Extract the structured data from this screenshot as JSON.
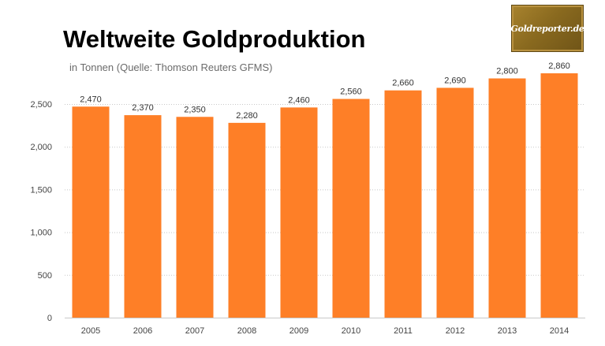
{
  "title": "Weltweite Goldproduktion",
  "subtitle": "in Tonnen (Quelle: Thomson Reuters GFMS)",
  "logo": {
    "text": "Goldreporter.de"
  },
  "colors": {
    "bar": "#FE7F27",
    "grid": "#c8c8c8",
    "axis_text": "#444444",
    "label_text": "#333333"
  },
  "chart_data": {
    "type": "bar",
    "categories": [
      "2005",
      "2006",
      "2007",
      "2008",
      "2009",
      "2010",
      "2011",
      "2012",
      "2013",
      "2014"
    ],
    "values": [
      2470,
      2370,
      2350,
      2280,
      2460,
      2560,
      2660,
      2690,
      2800,
      2860
    ],
    "value_labels": [
      "2,470",
      "2,370",
      "2,350",
      "2,280",
      "2,460",
      "2,560",
      "2,660",
      "2,690",
      "2,800",
      "2,860"
    ],
    "yticks": [
      0,
      500,
      1000,
      1500,
      2000,
      2500
    ],
    "ytick_labels": [
      "0",
      "500",
      "1,000",
      "1,500",
      "2,000",
      "2,500"
    ],
    "ylim": [
      0,
      2860
    ],
    "grid": true,
    "legend": "none",
    "title": "Weltweite Goldproduktion",
    "subtitle": "in Tonnen (Quelle: Thomson Reuters GFMS)",
    "xlabel": "",
    "ylabel": ""
  }
}
